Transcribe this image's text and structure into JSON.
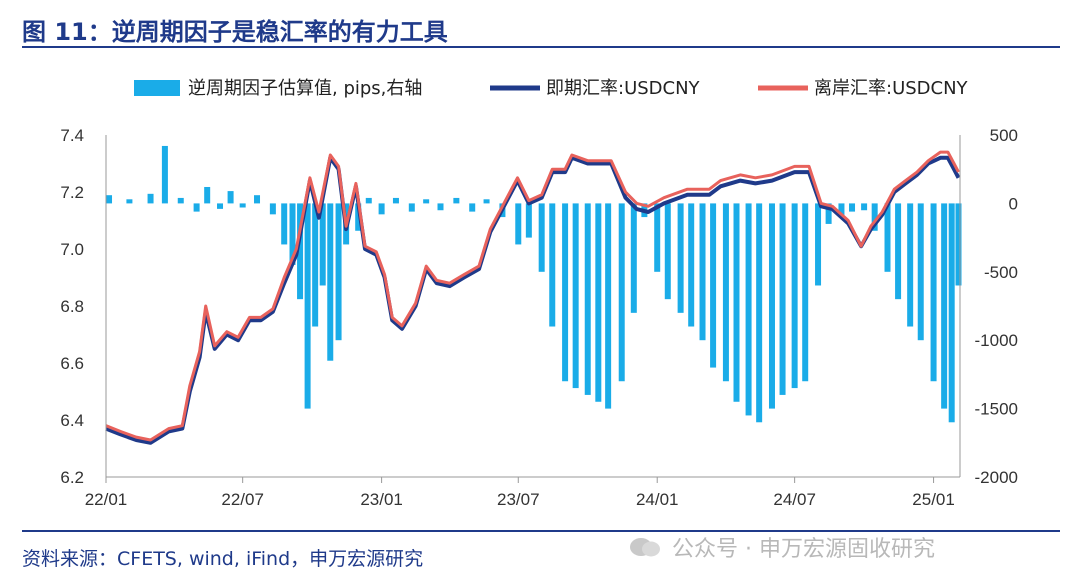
{
  "header": {
    "title": "图 11：逆周期因子是稳汇率的有力工具"
  },
  "footer": {
    "source": "资料来源：CFETS, wind, iFind，申万宏源研究",
    "watermark": "公众号 · 申万宏源固收研究"
  },
  "colors": {
    "bar": "#1aace8",
    "spot": "#1f3a8a",
    "offshore": "#e8625c",
    "title": "#1f3a8a"
  },
  "chart_data": {
    "type": "line",
    "legend": [
      "逆周期因子估算值, pips,右轴",
      "即期汇率:USDCNY",
      "离岸汇率:USDCNY"
    ],
    "legend_placement": "top",
    "x_tick_labels": [
      "22/01",
      "22/07",
      "23/01",
      "23/07",
      "24/01",
      "24/07",
      "25/01"
    ],
    "x_tick_dates": [
      "2022-01",
      "2022-07",
      "2023-01",
      "2023-07",
      "2024-01",
      "2024-07",
      "2025-01"
    ],
    "x_range": [
      "2022-01",
      "2025-02"
    ],
    "y_left_ticks": [
      "6.2",
      "6.4",
      "6.6",
      "6.8",
      "7.0",
      "7.2",
      "7.4"
    ],
    "y_left_range": [
      6.2,
      7.4
    ],
    "y_right_ticks": [
      "500",
      "0",
      "-500",
      "-1000",
      "-1500",
      "-2000"
    ],
    "y_right_range": [
      -2000,
      500
    ],
    "grid": false,
    "series": [
      {
        "name": "即期汇率:USDCNY",
        "axis": "left",
        "points": [
          [
            "2022-01-01",
            6.37
          ],
          [
            "2022-01-20",
            6.35
          ],
          [
            "2022-02-10",
            6.33
          ],
          [
            "2022-03-01",
            6.32
          ],
          [
            "2022-03-25",
            6.36
          ],
          [
            "2022-04-12",
            6.37
          ],
          [
            "2022-04-22",
            6.5
          ],
          [
            "2022-05-05",
            6.62
          ],
          [
            "2022-05-13",
            6.78
          ],
          [
            "2022-05-25",
            6.65
          ],
          [
            "2022-06-10",
            6.7
          ],
          [
            "2022-06-25",
            6.68
          ],
          [
            "2022-07-10",
            6.75
          ],
          [
            "2022-07-25",
            6.75
          ],
          [
            "2022-08-10",
            6.78
          ],
          [
            "2022-08-25",
            6.88
          ],
          [
            "2022-09-10",
            6.98
          ],
          [
            "2022-09-28",
            7.24
          ],
          [
            "2022-10-10",
            7.11
          ],
          [
            "2022-10-25",
            7.32
          ],
          [
            "2022-11-05",
            7.28
          ],
          [
            "2022-11-15",
            7.07
          ],
          [
            "2022-11-28",
            7.22
          ],
          [
            "2022-12-10",
            7.0
          ],
          [
            "2022-12-25",
            6.98
          ],
          [
            "2023-01-05",
            6.9
          ],
          [
            "2023-01-15",
            6.75
          ],
          [
            "2023-01-28",
            6.72
          ],
          [
            "2023-02-15",
            6.8
          ],
          [
            "2023-03-01",
            6.93
          ],
          [
            "2023-03-15",
            6.88
          ],
          [
            "2023-04-01",
            6.87
          ],
          [
            "2023-04-20",
            6.9
          ],
          [
            "2023-05-10",
            6.93
          ],
          [
            "2023-05-25",
            7.06
          ],
          [
            "2023-06-10",
            7.14
          ],
          [
            "2023-06-30",
            7.24
          ],
          [
            "2023-07-15",
            7.16
          ],
          [
            "2023-08-01",
            7.18
          ],
          [
            "2023-08-15",
            7.27
          ],
          [
            "2023-09-01",
            7.27
          ],
          [
            "2023-09-10",
            7.32
          ],
          [
            "2023-10-01",
            7.3
          ],
          [
            "2023-11-01",
            7.3
          ],
          [
            "2023-11-20",
            7.18
          ],
          [
            "2023-12-05",
            7.14
          ],
          [
            "2023-12-20",
            7.13
          ],
          [
            "2024-01-10",
            7.16
          ],
          [
            "2024-02-10",
            7.19
          ],
          [
            "2024-03-10",
            7.19
          ],
          [
            "2024-03-25",
            7.22
          ],
          [
            "2024-04-20",
            7.24
          ],
          [
            "2024-05-10",
            7.23
          ],
          [
            "2024-06-01",
            7.24
          ],
          [
            "2024-07-01",
            7.27
          ],
          [
            "2024-07-20",
            7.27
          ],
          [
            "2024-08-05",
            7.15
          ],
          [
            "2024-08-20",
            7.14
          ],
          [
            "2024-09-10",
            7.09
          ],
          [
            "2024-09-27",
            7.01
          ],
          [
            "2024-10-10",
            7.07
          ],
          [
            "2024-10-25",
            7.12
          ],
          [
            "2024-11-10",
            7.2
          ],
          [
            "2024-11-25",
            7.23
          ],
          [
            "2024-12-10",
            7.26
          ],
          [
            "2024-12-25",
            7.3
          ],
          [
            "2025-01-10",
            7.32
          ],
          [
            "2025-01-20",
            7.32
          ],
          [
            "2025-01-28",
            7.28
          ],
          [
            "2025-02-03",
            7.25
          ]
        ]
      },
      {
        "name": "离岸汇率:USDCNY",
        "axis": "left",
        "points": [
          [
            "2022-01-01",
            6.38
          ],
          [
            "2022-01-20",
            6.36
          ],
          [
            "2022-02-10",
            6.34
          ],
          [
            "2022-03-01",
            6.33
          ],
          [
            "2022-03-25",
            6.37
          ],
          [
            "2022-04-12",
            6.38
          ],
          [
            "2022-04-22",
            6.52
          ],
          [
            "2022-05-05",
            6.64
          ],
          [
            "2022-05-13",
            6.8
          ],
          [
            "2022-05-25",
            6.66
          ],
          [
            "2022-06-10",
            6.71
          ],
          [
            "2022-06-25",
            6.69
          ],
          [
            "2022-07-10",
            6.76
          ],
          [
            "2022-07-25",
            6.76
          ],
          [
            "2022-08-10",
            6.79
          ],
          [
            "2022-08-25",
            6.9
          ],
          [
            "2022-09-10",
            7.0
          ],
          [
            "2022-09-28",
            7.25
          ],
          [
            "2022-10-10",
            7.13
          ],
          [
            "2022-10-25",
            7.33
          ],
          [
            "2022-11-05",
            7.29
          ],
          [
            "2022-11-15",
            7.08
          ],
          [
            "2022-11-28",
            7.23
          ],
          [
            "2022-12-10",
            7.01
          ],
          [
            "2022-12-25",
            6.99
          ],
          [
            "2023-01-05",
            6.91
          ],
          [
            "2023-01-15",
            6.76
          ],
          [
            "2023-01-28",
            6.73
          ],
          [
            "2023-02-15",
            6.81
          ],
          [
            "2023-03-01",
            6.94
          ],
          [
            "2023-03-15",
            6.89
          ],
          [
            "2023-04-01",
            6.88
          ],
          [
            "2023-04-20",
            6.91
          ],
          [
            "2023-05-10",
            6.94
          ],
          [
            "2023-05-25",
            7.07
          ],
          [
            "2023-06-10",
            7.15
          ],
          [
            "2023-06-30",
            7.25
          ],
          [
            "2023-07-15",
            7.17
          ],
          [
            "2023-08-01",
            7.19
          ],
          [
            "2023-08-15",
            7.28
          ],
          [
            "2023-09-01",
            7.28
          ],
          [
            "2023-09-10",
            7.33
          ],
          [
            "2023-10-01",
            7.31
          ],
          [
            "2023-11-01",
            7.31
          ],
          [
            "2023-11-20",
            7.2
          ],
          [
            "2023-12-05",
            7.16
          ],
          [
            "2023-12-20",
            7.15
          ],
          [
            "2024-01-10",
            7.18
          ],
          [
            "2024-02-10",
            7.21
          ],
          [
            "2024-03-10",
            7.21
          ],
          [
            "2024-03-25",
            7.24
          ],
          [
            "2024-04-20",
            7.26
          ],
          [
            "2024-05-10",
            7.25
          ],
          [
            "2024-06-01",
            7.26
          ],
          [
            "2024-07-01",
            7.29
          ],
          [
            "2024-07-20",
            7.29
          ],
          [
            "2024-08-05",
            7.16
          ],
          [
            "2024-08-20",
            7.15
          ],
          [
            "2024-09-10",
            7.1
          ],
          [
            "2024-09-27",
            7.01
          ],
          [
            "2024-10-10",
            7.08
          ],
          [
            "2024-10-25",
            7.13
          ],
          [
            "2024-11-10",
            7.21
          ],
          [
            "2024-11-25",
            7.24
          ],
          [
            "2024-12-10",
            7.27
          ],
          [
            "2024-12-25",
            7.31
          ],
          [
            "2025-01-10",
            7.34
          ],
          [
            "2025-01-20",
            7.34
          ],
          [
            "2025-01-28",
            7.3
          ],
          [
            "2025-02-03",
            7.27
          ]
        ]
      },
      {
        "name": "逆周期因子估算值, pips,右轴",
        "axis": "right",
        "type": "bar",
        "points": [
          [
            "2022-01-05",
            60
          ],
          [
            "2022-02-01",
            30
          ],
          [
            "2022-03-01",
            70
          ],
          [
            "2022-03-20",
            420
          ],
          [
            "2022-04-10",
            40
          ],
          [
            "2022-05-01",
            -60
          ],
          [
            "2022-05-15",
            120
          ],
          [
            "2022-06-01",
            -40
          ],
          [
            "2022-06-15",
            90
          ],
          [
            "2022-07-01",
            -30
          ],
          [
            "2022-07-20",
            60
          ],
          [
            "2022-08-10",
            -80
          ],
          [
            "2022-08-25",
            -300
          ],
          [
            "2022-09-05",
            -450
          ],
          [
            "2022-09-15",
            -700
          ],
          [
            "2022-09-25",
            -1500
          ],
          [
            "2022-10-05",
            -900
          ],
          [
            "2022-10-15",
            -600
          ],
          [
            "2022-10-25",
            -1150
          ],
          [
            "2022-11-05",
            -1000
          ],
          [
            "2022-11-15",
            -300
          ],
          [
            "2022-12-01",
            -200
          ],
          [
            "2022-12-15",
            40
          ],
          [
            "2023-01-01",
            -80
          ],
          [
            "2023-01-20",
            40
          ],
          [
            "2023-02-10",
            -60
          ],
          [
            "2023-03-01",
            30
          ],
          [
            "2023-03-20",
            -50
          ],
          [
            "2023-04-10",
            40
          ],
          [
            "2023-05-01",
            -60
          ],
          [
            "2023-05-20",
            30
          ],
          [
            "2023-06-10",
            -100
          ],
          [
            "2023-07-01",
            -300
          ],
          [
            "2023-07-15",
            -250
          ],
          [
            "2023-08-01",
            -500
          ],
          [
            "2023-08-15",
            -900
          ],
          [
            "2023-09-01",
            -1300
          ],
          [
            "2023-09-15",
            -1350
          ],
          [
            "2023-10-01",
            -1400
          ],
          [
            "2023-10-15",
            -1450
          ],
          [
            "2023-10-28",
            -1500
          ],
          [
            "2023-11-15",
            -1300
          ],
          [
            "2023-12-01",
            -800
          ],
          [
            "2023-12-15",
            -100
          ],
          [
            "2024-01-01",
            -500
          ],
          [
            "2024-01-15",
            -700
          ],
          [
            "2024-02-01",
            -800
          ],
          [
            "2024-02-15",
            -900
          ],
          [
            "2024-03-01",
            -1000
          ],
          [
            "2024-03-15",
            -1200
          ],
          [
            "2024-04-01",
            -1300
          ],
          [
            "2024-04-15",
            -1450
          ],
          [
            "2024-05-01",
            -1550
          ],
          [
            "2024-05-15",
            -1600
          ],
          [
            "2024-06-01",
            -1500
          ],
          [
            "2024-06-15",
            -1400
          ],
          [
            "2024-07-01",
            -1350
          ],
          [
            "2024-07-15",
            -1300
          ],
          [
            "2024-08-01",
            -600
          ],
          [
            "2024-08-15",
            -150
          ],
          [
            "2024-09-01",
            -100
          ],
          [
            "2024-09-15",
            -60
          ],
          [
            "2024-10-01",
            -50
          ],
          [
            "2024-10-15",
            -200
          ],
          [
            "2024-11-01",
            -500
          ],
          [
            "2024-11-15",
            -700
          ],
          [
            "2024-12-01",
            -900
          ],
          [
            "2024-12-15",
            -1000
          ],
          [
            "2025-01-01",
            -1300
          ],
          [
            "2025-01-15",
            -1500
          ],
          [
            "2025-01-25",
            -1600
          ],
          [
            "2025-02-03",
            -600
          ]
        ]
      }
    ]
  }
}
